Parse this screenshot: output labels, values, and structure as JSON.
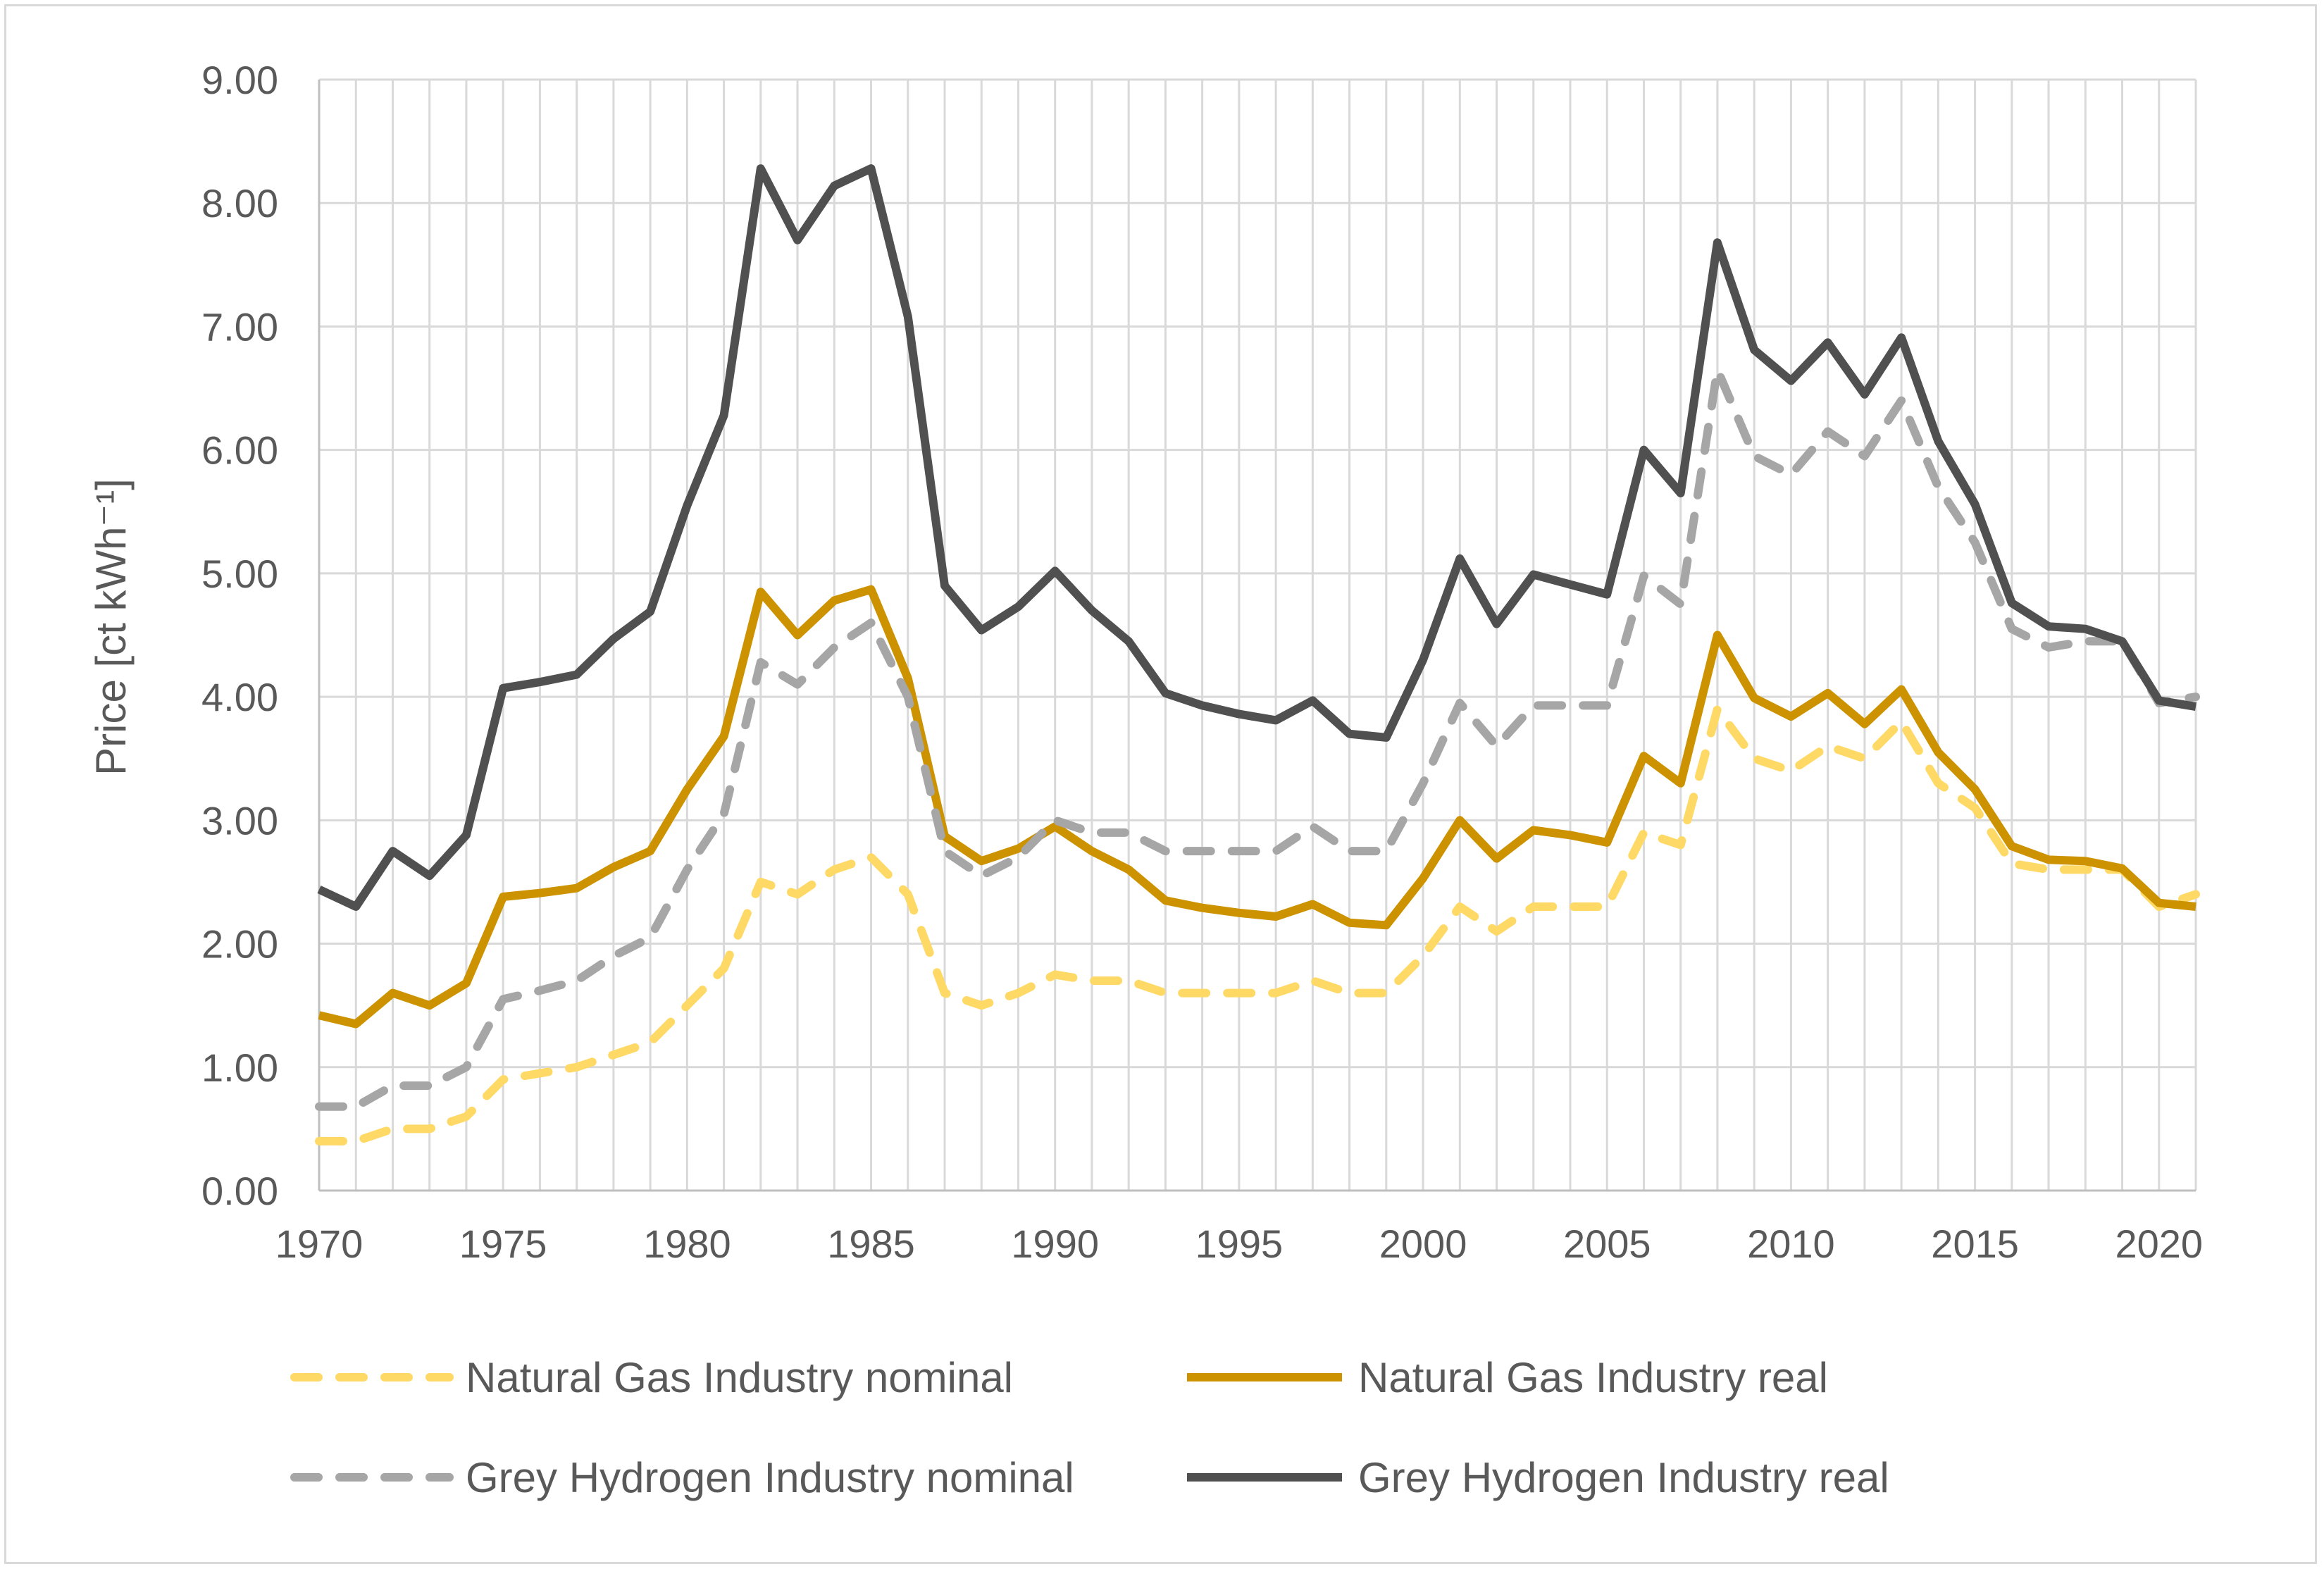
{
  "chart_data": {
    "type": "line",
    "title": "",
    "xlabel": "",
    "ylabel": "Price [ct kWh⁻¹]",
    "xlim": [
      1970,
      2021
    ],
    "ylim": [
      0,
      9
    ],
    "x_ticks": [
      "1970",
      "1975",
      "1980",
      "1985",
      "1990",
      "1995",
      "2000",
      "2005",
      "2010",
      "2015",
      "2020"
    ],
    "y_ticks": [
      "0.00",
      "1.00",
      "2.00",
      "3.00",
      "4.00",
      "5.00",
      "6.00",
      "7.00",
      "8.00",
      "9.00"
    ],
    "grid": true,
    "legend_position": "bottom",
    "x": [
      1970,
      1971,
      1972,
      1973,
      1974,
      1975,
      1976,
      1977,
      1978,
      1979,
      1980,
      1981,
      1982,
      1983,
      1984,
      1985,
      1986,
      1987,
      1988,
      1989,
      1990,
      1991,
      1992,
      1993,
      1994,
      1995,
      1996,
      1997,
      1998,
      1999,
      2000,
      2001,
      2002,
      2003,
      2004,
      2005,
      2006,
      2007,
      2008,
      2009,
      2010,
      2011,
      2012,
      2013,
      2014,
      2015,
      2016,
      2017,
      2018,
      2019,
      2020,
      2021
    ],
    "series": [
      {
        "name": "Natural Gas Industry nominal",
        "color": "#ffd966",
        "style": "dashed",
        "values": [
          0.4,
          0.4,
          0.5,
          0.5,
          0.6,
          0.9,
          0.95,
          1.0,
          1.1,
          1.2,
          1.5,
          1.8,
          2.5,
          2.4,
          2.6,
          2.7,
          2.4,
          1.6,
          1.5,
          1.6,
          1.75,
          1.7,
          1.7,
          1.6,
          1.6,
          1.6,
          1.6,
          1.7,
          1.6,
          1.6,
          1.9,
          2.3,
          2.1,
          2.3,
          2.3,
          2.3,
          2.9,
          2.8,
          3.9,
          3.5,
          3.4,
          3.6,
          3.5,
          3.8,
          3.3,
          3.1,
          2.65,
          2.6,
          2.6,
          2.6,
          2.3,
          2.4
        ]
      },
      {
        "name": "Natural Gas Industry real",
        "color": "#cc9200",
        "style": "solid",
        "values": [
          1.42,
          1.35,
          1.6,
          1.5,
          1.68,
          2.38,
          2.41,
          2.45,
          2.62,
          2.75,
          3.25,
          3.68,
          4.85,
          4.5,
          4.78,
          4.87,
          4.15,
          2.87,
          2.67,
          2.77,
          2.95,
          2.75,
          2.6,
          2.35,
          2.29,
          2.25,
          2.22,
          2.32,
          2.17,
          2.15,
          2.53,
          3.0,
          2.69,
          2.92,
          2.88,
          2.82,
          3.52,
          3.3,
          4.5,
          3.99,
          3.84,
          4.03,
          3.78,
          4.06,
          3.55,
          3.25,
          2.79,
          2.68,
          2.67,
          2.61,
          2.33,
          2.3
        ]
      },
      {
        "name": "Grey Hydrogen Industry nominal",
        "color": "#a6a6a6",
        "style": "dashed",
        "values": [
          0.68,
          0.68,
          0.85,
          0.85,
          1.0,
          1.55,
          1.62,
          1.7,
          1.9,
          2.05,
          2.6,
          3.05,
          4.28,
          4.1,
          4.4,
          4.6,
          4.0,
          2.75,
          2.55,
          2.7,
          3.0,
          2.9,
          2.9,
          2.75,
          2.75,
          2.75,
          2.75,
          2.95,
          2.75,
          2.75,
          3.3,
          3.95,
          3.6,
          3.93,
          3.93,
          3.93,
          4.98,
          4.75,
          6.65,
          5.95,
          5.8,
          6.15,
          5.95,
          6.4,
          5.7,
          5.25,
          4.55,
          4.4,
          4.45,
          4.45,
          3.95,
          4.0
        ]
      },
      {
        "name": "Grey Hydrogen Industry real",
        "color": "#505050",
        "style": "solid",
        "values": [
          2.44,
          2.3,
          2.75,
          2.55,
          2.88,
          4.07,
          4.12,
          4.18,
          4.47,
          4.69,
          5.55,
          6.28,
          8.28,
          7.7,
          8.14,
          8.28,
          7.08,
          4.9,
          4.54,
          4.73,
          5.02,
          4.7,
          4.45,
          4.03,
          3.93,
          3.86,
          3.81,
          3.97,
          3.7,
          3.67,
          4.3,
          5.12,
          4.59,
          4.99,
          4.91,
          4.83,
          6.0,
          5.65,
          7.68,
          6.81,
          6.56,
          6.87,
          6.45,
          6.91,
          6.07,
          5.56,
          4.76,
          4.57,
          4.55,
          4.45,
          3.97,
          3.92
        ]
      }
    ]
  }
}
